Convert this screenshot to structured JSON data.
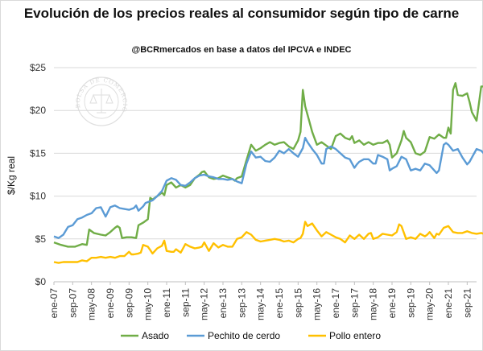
{
  "chart_data": {
    "type": "line",
    "title": "Evolución de los precios reales al consumidor según tipo de carne",
    "subtitle": "@BCRmercados en base a datos del IPCVA e INDEC",
    "ylabel": "$/Kg real",
    "ylim": [
      0,
      25
    ],
    "yticks": [
      0,
      5,
      10,
      15,
      20,
      25
    ],
    "ytick_labels": [
      "$0",
      "$5",
      "$10",
      "$15",
      "$20",
      "$25"
    ],
    "x_range": [
      0,
      180
    ],
    "xtick_labels": [
      "ene-07",
      "sep-07",
      "may-08",
      "ene-09",
      "sep-09",
      "may-10",
      "ene-11",
      "sep-11",
      "may-12",
      "ene-13",
      "sep-13",
      "may-14",
      "ene-15",
      "sep-15",
      "may-16",
      "ene-17",
      "sep-17",
      "may-18",
      "ene-19",
      "sep-19",
      "may-20",
      "ene-21",
      "sep-21"
    ],
    "xtick_months": [
      0,
      8,
      16,
      24,
      32,
      40,
      48,
      56,
      64,
      72,
      80,
      88,
      96,
      104,
      112,
      120,
      128,
      136,
      144,
      152,
      160,
      168,
      176
    ],
    "watermark_text": "BOLSA DE COMERCIO DE ROSARIO",
    "series": [
      {
        "name": "Asado",
        "color": "#70ad47",
        "points": [
          [
            0,
            4.6
          ],
          [
            3,
            4.3
          ],
          [
            6,
            4.1
          ],
          [
            9,
            4.1
          ],
          [
            12,
            4.4
          ],
          [
            14,
            4.3
          ],
          [
            15,
            6.1
          ],
          [
            17,
            5.7
          ],
          [
            20,
            5.5
          ],
          [
            22,
            5.4
          ],
          [
            24,
            5.8
          ],
          [
            26,
            6.3
          ],
          [
            27,
            6.5
          ],
          [
            28,
            6.3
          ],
          [
            29,
            5.1
          ],
          [
            31,
            5.2
          ],
          [
            33,
            5.2
          ],
          [
            35,
            5.1
          ],
          [
            36,
            6.6
          ],
          [
            38,
            6.9
          ],
          [
            40,
            7.3
          ],
          [
            41,
            9.8
          ],
          [
            42,
            9.6
          ],
          [
            44,
            10.0
          ],
          [
            46,
            10.4
          ],
          [
            47,
            10.1
          ],
          [
            48,
            11.3
          ],
          [
            50,
            11.6
          ],
          [
            52,
            11.0
          ],
          [
            54,
            11.3
          ],
          [
            56,
            11.0
          ],
          [
            58,
            11.3
          ],
          [
            60,
            12.1
          ],
          [
            62,
            12.5
          ],
          [
            63,
            12.8
          ],
          [
            64,
            12.9
          ],
          [
            66,
            12.2
          ],
          [
            68,
            12.0
          ],
          [
            70,
            12.1
          ],
          [
            72,
            12.4
          ],
          [
            74,
            12.2
          ],
          [
            76,
            12.0
          ],
          [
            77,
            11.8
          ],
          [
            78,
            12.1
          ],
          [
            80,
            12.3
          ],
          [
            82,
            14.2
          ],
          [
            84,
            16.0
          ],
          [
            86,
            15.3
          ],
          [
            88,
            15.6
          ],
          [
            90,
            16.0
          ],
          [
            92,
            16.3
          ],
          [
            94,
            16.0
          ],
          [
            96,
            16.2
          ],
          [
            98,
            16.3
          ],
          [
            100,
            15.8
          ],
          [
            102,
            15.5
          ],
          [
            104,
            16.5
          ],
          [
            105,
            17.5
          ],
          [
            106,
            22.4
          ],
          [
            107,
            20.5
          ],
          [
            108,
            19.5
          ],
          [
            110,
            17.5
          ],
          [
            112,
            16.0
          ],
          [
            114,
            16.3
          ],
          [
            116,
            15.9
          ],
          [
            118,
            15.5
          ],
          [
            120,
            17.0
          ],
          [
            122,
            17.3
          ],
          [
            124,
            16.8
          ],
          [
            126,
            16.6
          ],
          [
            127,
            17.0
          ],
          [
            128,
            16.2
          ],
          [
            130,
            16.5
          ],
          [
            132,
            16.0
          ],
          [
            134,
            16.3
          ],
          [
            136,
            16.0
          ],
          [
            138,
            16.2
          ],
          [
            140,
            16.2
          ],
          [
            142,
            16.5
          ],
          [
            143,
            16.0
          ],
          [
            144,
            14.5
          ],
          [
            146,
            15.0
          ],
          [
            148,
            16.5
          ],
          [
            149,
            17.6
          ],
          [
            150,
            16.8
          ],
          [
            152,
            16.3
          ],
          [
            154,
            15.0
          ],
          [
            156,
            14.8
          ],
          [
            158,
            15.2
          ],
          [
            160,
            16.9
          ],
          [
            162,
            16.7
          ],
          [
            164,
            17.2
          ],
          [
            166,
            16.8
          ],
          [
            167,
            16.8
          ],
          [
            168,
            18.0
          ],
          [
            169,
            17.3
          ],
          [
            170,
            22.4
          ],
          [
            171,
            23.2
          ],
          [
            172,
            21.8
          ],
          [
            174,
            21.7
          ],
          [
            176,
            22.0
          ],
          [
            177,
            21.0
          ],
          [
            178,
            19.8
          ],
          [
            180,
            18.8
          ],
          [
            182,
            22.8
          ],
          [
            184,
            22.8
          ],
          [
            185,
            22.3
          ]
        ]
      },
      {
        "name": "Pechito de cerdo",
        "color": "#5b9bd5",
        "points": [
          [
            0,
            5.3
          ],
          [
            2,
            5.1
          ],
          [
            4,
            5.5
          ],
          [
            6,
            6.4
          ],
          [
            8,
            6.6
          ],
          [
            10,
            7.3
          ],
          [
            12,
            7.5
          ],
          [
            14,
            7.8
          ],
          [
            16,
            8.0
          ],
          [
            18,
            8.6
          ],
          [
            20,
            8.7
          ],
          [
            22,
            7.6
          ],
          [
            24,
            8.7
          ],
          [
            26,
            8.9
          ],
          [
            28,
            8.6
          ],
          [
            30,
            8.5
          ],
          [
            32,
            8.4
          ],
          [
            34,
            8.6
          ],
          [
            35,
            8.9
          ],
          [
            36,
            8.3
          ],
          [
            38,
            8.8
          ],
          [
            39,
            9.2
          ],
          [
            40,
            9.3
          ],
          [
            42,
            9.5
          ],
          [
            44,
            10.0
          ],
          [
            46,
            10.6
          ],
          [
            48,
            11.8
          ],
          [
            50,
            12.1
          ],
          [
            52,
            11.9
          ],
          [
            54,
            11.3
          ],
          [
            56,
            11.2
          ],
          [
            58,
            11.6
          ],
          [
            60,
            12.1
          ],
          [
            62,
            12.4
          ],
          [
            64,
            12.5
          ],
          [
            66,
            12.3
          ],
          [
            68,
            12.2
          ],
          [
            70,
            12.0
          ],
          [
            72,
            12.0
          ],
          [
            74,
            11.9
          ],
          [
            76,
            12.0
          ],
          [
            78,
            11.7
          ],
          [
            80,
            11.5
          ],
          [
            82,
            13.8
          ],
          [
            84,
            15.2
          ],
          [
            86,
            14.5
          ],
          [
            88,
            14.6
          ],
          [
            90,
            14.1
          ],
          [
            92,
            14.0
          ],
          [
            94,
            14.5
          ],
          [
            96,
            15.3
          ],
          [
            98,
            15.0
          ],
          [
            100,
            15.5
          ],
          [
            102,
            15.0
          ],
          [
            104,
            14.6
          ],
          [
            106,
            15.6
          ],
          [
            107,
            16.8
          ],
          [
            108,
            16.3
          ],
          [
            110,
            15.5
          ],
          [
            112,
            14.8
          ],
          [
            114,
            13.8
          ],
          [
            115,
            13.8
          ],
          [
            116,
            15.5
          ],
          [
            118,
            15.8
          ],
          [
            120,
            15.5
          ],
          [
            122,
            15.0
          ],
          [
            124,
            14.5
          ],
          [
            126,
            14.3
          ],
          [
            128,
            13.3
          ],
          [
            129,
            13.7
          ],
          [
            130,
            14.0
          ],
          [
            132,
            14.3
          ],
          [
            134,
            14.3
          ],
          [
            136,
            13.8
          ],
          [
            137,
            13.8
          ],
          [
            138,
            14.8
          ],
          [
            140,
            14.6
          ],
          [
            142,
            14.3
          ],
          [
            143,
            13.0
          ],
          [
            144,
            13.2
          ],
          [
            146,
            13.5
          ],
          [
            148,
            14.6
          ],
          [
            150,
            14.3
          ],
          [
            152,
            13.0
          ],
          [
            154,
            13.2
          ],
          [
            156,
            13.0
          ],
          [
            158,
            13.8
          ],
          [
            160,
            13.6
          ],
          [
            162,
            13.0
          ],
          [
            163,
            12.7
          ],
          [
            164,
            13.0
          ],
          [
            166,
            16.0
          ],
          [
            167,
            16.2
          ],
          [
            168,
            16.0
          ],
          [
            170,
            15.3
          ],
          [
            172,
            15.5
          ],
          [
            174,
            14.5
          ],
          [
            176,
            13.7
          ],
          [
            177,
            14.0
          ],
          [
            178,
            14.5
          ],
          [
            180,
            15.5
          ],
          [
            182,
            15.3
          ],
          [
            183,
            15.0
          ]
        ]
      },
      {
        "name": "Pollo entero",
        "color": "#ffc000",
        "points": [
          [
            0,
            2.3
          ],
          [
            2,
            2.2
          ],
          [
            4,
            2.3
          ],
          [
            6,
            2.3
          ],
          [
            8,
            2.3
          ],
          [
            10,
            2.3
          ],
          [
            12,
            2.5
          ],
          [
            14,
            2.4
          ],
          [
            16,
            2.8
          ],
          [
            18,
            2.8
          ],
          [
            20,
            2.9
          ],
          [
            22,
            2.8
          ],
          [
            24,
            2.9
          ],
          [
            26,
            2.8
          ],
          [
            28,
            3.0
          ],
          [
            30,
            3.0
          ],
          [
            32,
            3.5
          ],
          [
            33,
            3.2
          ],
          [
            34,
            3.2
          ],
          [
            36,
            3.3
          ],
          [
            37,
            3.4
          ],
          [
            38,
            4.3
          ],
          [
            40,
            4.1
          ],
          [
            41,
            3.7
          ],
          [
            42,
            3.3
          ],
          [
            44,
            3.9
          ],
          [
            46,
            4.2
          ],
          [
            47,
            4.8
          ],
          [
            48,
            3.6
          ],
          [
            50,
            3.5
          ],
          [
            51,
            3.5
          ],
          [
            52,
            3.8
          ],
          [
            54,
            3.4
          ],
          [
            56,
            4.4
          ],
          [
            58,
            4.1
          ],
          [
            60,
            3.9
          ],
          [
            62,
            4.0
          ],
          [
            63,
            4.1
          ],
          [
            64,
            4.6
          ],
          [
            66,
            3.6
          ],
          [
            68,
            4.5
          ],
          [
            70,
            4.0
          ],
          [
            72,
            4.3
          ],
          [
            74,
            4.1
          ],
          [
            76,
            4.1
          ],
          [
            78,
            5.0
          ],
          [
            80,
            5.2
          ],
          [
            82,
            5.8
          ],
          [
            84,
            5.5
          ],
          [
            86,
            4.9
          ],
          [
            88,
            4.7
          ],
          [
            90,
            4.8
          ],
          [
            92,
            4.9
          ],
          [
            94,
            5.0
          ],
          [
            96,
            4.9
          ],
          [
            98,
            4.7
          ],
          [
            100,
            4.8
          ],
          [
            102,
            4.6
          ],
          [
            104,
            5.0
          ],
          [
            105,
            5.1
          ],
          [
            106,
            5.6
          ],
          [
            107,
            7.0
          ],
          [
            108,
            6.5
          ],
          [
            110,
            6.8
          ],
          [
            112,
            6.0
          ],
          [
            114,
            5.3
          ],
          [
            116,
            5.8
          ],
          [
            118,
            5.5
          ],
          [
            120,
            5.2
          ],
          [
            121,
            5.1
          ],
          [
            122,
            5.0
          ],
          [
            124,
            4.6
          ],
          [
            126,
            5.4
          ],
          [
            128,
            5.0
          ],
          [
            130,
            5.5
          ],
          [
            132,
            5.0
          ],
          [
            134,
            5.6
          ],
          [
            135,
            5.7
          ],
          [
            136,
            5.0
          ],
          [
            138,
            5.2
          ],
          [
            140,
            5.6
          ],
          [
            142,
            5.5
          ],
          [
            144,
            5.4
          ],
          [
            146,
            5.8
          ],
          [
            147,
            6.7
          ],
          [
            148,
            6.5
          ],
          [
            150,
            5.0
          ],
          [
            152,
            5.2
          ],
          [
            154,
            5.0
          ],
          [
            156,
            5.6
          ],
          [
            158,
            5.3
          ],
          [
            159,
            5.5
          ],
          [
            160,
            5.8
          ],
          [
            162,
            5.1
          ],
          [
            163,
            5.6
          ],
          [
            164,
            5.5
          ],
          [
            166,
            6.3
          ],
          [
            168,
            6.5
          ],
          [
            170,
            5.8
          ],
          [
            172,
            5.7
          ],
          [
            174,
            5.7
          ],
          [
            176,
            5.9
          ],
          [
            178,
            5.7
          ],
          [
            180,
            5.6
          ],
          [
            182,
            5.7
          ],
          [
            183,
            5.6
          ]
        ]
      }
    ]
  }
}
